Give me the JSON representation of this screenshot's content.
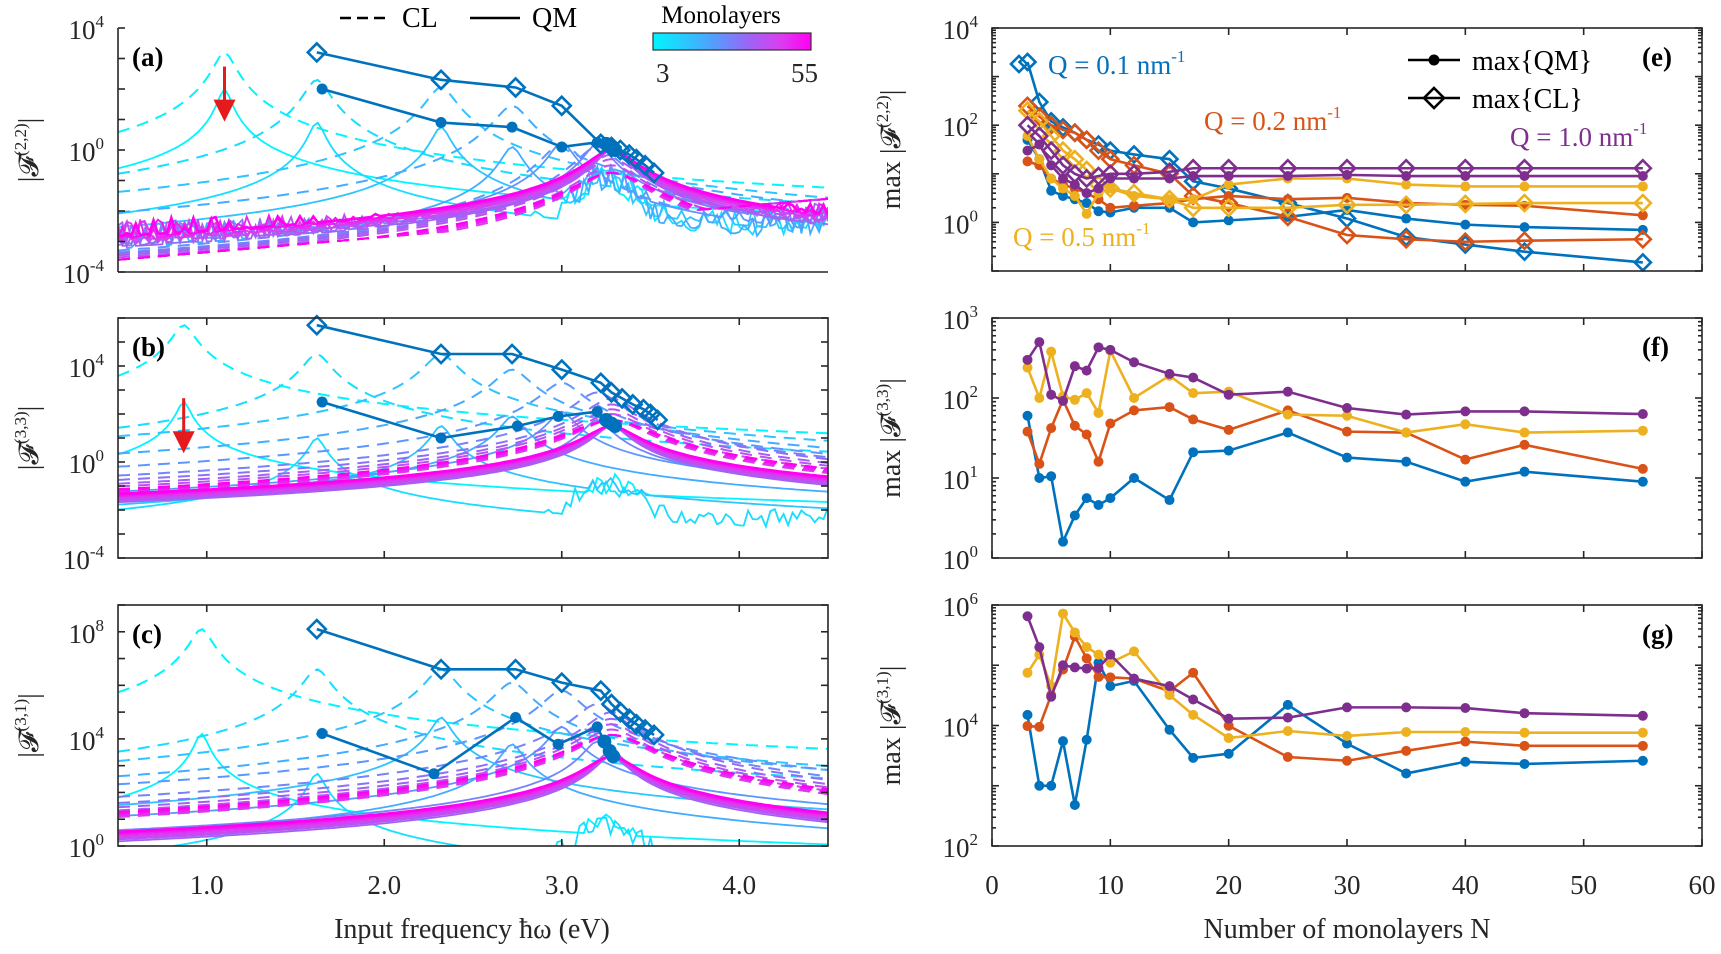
{
  "figure": {
    "legend_top": {
      "cl_label": "CL",
      "qm_label": "QM",
      "colorbar_title": "Monolayers",
      "colorbar_min": "3",
      "colorbar_max": "55",
      "colorbar_colors": [
        "#00f5ff",
        "#4aa6ff",
        "#9a66f5",
        "#d93ff0",
        "#ff00f0"
      ]
    },
    "left_xlabel": "Input frequency ħω (eV)",
    "right_xlabel": "Number of monolayers N"
  },
  "chart_data": [
    {
      "id": "a",
      "panel_label": "(a)",
      "type": "line",
      "ylabel": "|F(2,2)|",
      "ylabel_sup": "(2,2)",
      "xlim": [
        0.5,
        4.5
      ],
      "ylim_log10": [
        -4,
        4
      ],
      "yticks": [
        {
          "label": "10",
          "sup": "4",
          "v": 4
        },
        {
          "label": "10",
          "sup": "0",
          "v": 0
        },
        {
          "label": "10",
          "sup": "-4",
          "v": -4
        }
      ],
      "xticks": [
        1.0,
        2.0,
        3.0,
        4.0
      ],
      "annotation": {
        "type": "red-arrow",
        "x": 1.1,
        "y_log10": 0.8
      },
      "max_cl": {
        "x": [
          1.62,
          2.32,
          2.74,
          3.0,
          3.22,
          3.28,
          3.33,
          3.38,
          3.42,
          3.47,
          3.52
        ],
        "y_log10": [
          3.2,
          2.3,
          2.05,
          1.45,
          0.2,
          0.1,
          0.0,
          -0.15,
          -0.3,
          -0.5,
          -0.75
        ]
      },
      "max_qm": {
        "x": [
          1.65,
          2.32,
          2.72,
          3.0,
          3.2,
          3.25,
          3.28,
          3.3
        ],
        "y_log10": [
          2.0,
          0.9,
          0.75,
          0.1,
          0.25,
          0.2,
          0.1,
          0.0
        ]
      },
      "resonances": [
        1.1,
        1.62,
        2.32,
        2.72,
        3.0,
        3.2,
        3.28
      ]
    },
    {
      "id": "b",
      "panel_label": "(b)",
      "type": "line",
      "ylabel": "|F(3,3)|",
      "ylabel_sup": "(3,3)",
      "xlim": [
        0.5,
        4.5
      ],
      "ylim_log10": [
        -4,
        6
      ],
      "yticks": [
        {
          "label": "10",
          "sup": "4",
          "v": 4
        },
        {
          "label": "10",
          "sup": "0",
          "v": 0
        },
        {
          "label": "10",
          "sup": "-4",
          "v": -4
        }
      ],
      "xticks": [
        1.0,
        2.0,
        3.0,
        4.0
      ],
      "annotation": {
        "type": "red-arrow",
        "x": 0.87,
        "y_log10": 0.2
      },
      "max_cl": {
        "x": [
          1.62,
          2.32,
          2.72,
          3.0,
          3.22,
          3.28,
          3.34,
          3.4,
          3.46,
          3.5,
          3.54
        ],
        "y_log10": [
          5.7,
          4.5,
          4.5,
          3.85,
          3.3,
          2.9,
          2.65,
          2.4,
          2.2,
          2.0,
          1.75
        ]
      },
      "max_qm": {
        "x": [
          1.65,
          2.32,
          2.75,
          2.98,
          3.2,
          3.25,
          3.28,
          3.3
        ],
        "y_log10": [
          2.5,
          1.0,
          1.5,
          1.9,
          2.1,
          1.75,
          1.6,
          1.5
        ]
      },
      "resonances": [
        0.87,
        1.62,
        2.32,
        2.72,
        3.0,
        3.2,
        3.28
      ]
    },
    {
      "id": "c",
      "panel_label": "(c)",
      "type": "line",
      "ylabel": "|F(3,1)|",
      "ylabel_sup": "(3,1)",
      "xlim": [
        0.5,
        4.5
      ],
      "ylim_log10": [
        0,
        9
      ],
      "yticks": [
        {
          "label": "10",
          "sup": "8",
          "v": 8
        },
        {
          "label": "10",
          "sup": "4",
          "v": 4
        },
        {
          "label": "10",
          "sup": "0",
          "v": 0
        }
      ],
      "xticks": [
        1.0,
        2.0,
        3.0,
        4.0
      ],
      "max_cl": {
        "x": [
          1.62,
          2.32,
          2.74,
          3.0,
          3.22,
          3.28,
          3.33,
          3.38,
          3.42,
          3.47,
          3.52
        ],
        "y_log10": [
          8.1,
          6.6,
          6.6,
          6.1,
          5.8,
          5.3,
          5.0,
          4.75,
          4.55,
          4.35,
          4.15
        ]
      },
      "max_qm": {
        "x": [
          1.65,
          2.28,
          2.74,
          2.98,
          3.2,
          3.24,
          3.27,
          3.29
        ],
        "y_log10": [
          4.2,
          2.7,
          4.8,
          3.8,
          4.45,
          3.9,
          3.55,
          3.35
        ]
      },
      "resonances": [
        0.97,
        1.62,
        2.32,
        2.72,
        3.0,
        3.2,
        3.28
      ]
    },
    {
      "id": "e",
      "panel_label": "(e)",
      "type": "line",
      "ylabel": "max |F(2,2)|",
      "ylabel_sup": "(2,2)",
      "xlim": [
        0,
        60
      ],
      "ylim": [
        0.1,
        10000
      ],
      "yticks": [
        {
          "label": "10",
          "sup": "4",
          "v": 4
        },
        {
          "label": "10",
          "sup": "2",
          "v": 2
        },
        {
          "label": "10",
          "sup": "0",
          "v": 0
        }
      ],
      "xticks": [
        0,
        10,
        20,
        30,
        40,
        50,
        60
      ],
      "legend": {
        "qm": "max{QM}",
        "cl": "max{CL}",
        "placement": "top-right"
      },
      "N": [
        3,
        4,
        5,
        6,
        7,
        8,
        9,
        10,
        12,
        15,
        17,
        20,
        25,
        30,
        35,
        40,
        45,
        55
      ],
      "series": [
        {
          "name": "Q = 0.1 nm",
          "sup": "-1",
          "color": "#0072bd",
          "qm": [
            50,
            20,
            4.5,
            3.5,
            3,
            2.5,
            1.7,
            1.6,
            2,
            2,
            1.0,
            1.1,
            1.3,
            1.8,
            1.2,
            0.9,
            0.8,
            0.7
          ],
          "cl": [
            2000,
            300,
            120,
            90,
            70,
            50,
            40,
            30,
            25,
            20,
            7,
            5,
            2.5,
            1.2,
            0.5,
            0.35,
            0.25,
            0.15
          ]
        },
        {
          "name": "Q = 0.2 nm",
          "sup": "-1",
          "color": "#d95319",
          "qm": [
            18,
            15,
            8,
            6,
            5,
            4,
            3,
            2,
            2.2,
            2.5,
            3,
            3.5,
            3,
            3.2,
            2.5,
            2.3,
            2.2,
            1.4
          ],
          "cl": [
            250,
            150,
            100,
            80,
            70,
            50,
            30,
            20,
            15,
            10,
            3.5,
            2.5,
            1.3,
            0.55,
            0.45,
            0.4,
            0.42,
            0.45
          ]
        },
        {
          "name": "Q = 0.5 nm",
          "sup": "-1",
          "color": "#edb120",
          "qm": [
            60,
            20,
            8,
            5,
            3.5,
            1.5,
            4,
            5,
            3.5,
            3,
            3,
            6,
            8,
            8,
            6,
            5.5,
            5.5,
            5.5
          ],
          "cl": [
            200,
            120,
            60,
            30,
            20,
            12,
            6,
            5,
            4,
            3,
            2,
            2,
            2,
            2.3,
            2.3,
            2.4,
            2.5,
            2.5
          ]
        },
        {
          "name": "Q = 1.0 nm",
          "sup": "-1",
          "color": "#7e2f8e",
          "qm": [
            30,
            40,
            15,
            8,
            6,
            4,
            5,
            8,
            8,
            8,
            9,
            9,
            9,
            9.5,
            9,
            9,
            9,
            9
          ],
          "cl": [
            100,
            60,
            30,
            15,
            10,
            8,
            9,
            10,
            10,
            11,
            13,
            13,
            13,
            13,
            13,
            13,
            13,
            13
          ]
        }
      ],
      "q_label_positions": [
        "top-left",
        "center-right",
        "bottom-left",
        "right"
      ]
    },
    {
      "id": "f",
      "panel_label": "(f)",
      "type": "line",
      "ylabel": "max |F(3,3)|",
      "ylabel_sup": "(3,3)",
      "xlim": [
        0,
        60
      ],
      "ylim": [
        1,
        1000
      ],
      "yticks": [
        {
          "label": "10",
          "sup": "3",
          "v": 3
        },
        {
          "label": "10",
          "sup": "2",
          "v": 2
        },
        {
          "label": "10",
          "sup": "1",
          "v": 1
        },
        {
          "label": "10",
          "sup": "0",
          "v": 0
        }
      ],
      "xticks": [
        0,
        10,
        20,
        30,
        40,
        50,
        60
      ],
      "N": [
        3,
        4,
        5,
        6,
        7,
        8,
        9,
        10,
        12,
        15,
        17,
        20,
        25,
        30,
        35,
        40,
        45,
        55
      ],
      "series": [
        {
          "name": "Q = 0.1 nm-1",
          "color": "#0072bd",
          "qm": [
            60,
            10,
            10.5,
            1.6,
            3.4,
            5.6,
            4.6,
            5.6,
            10,
            5.3,
            21,
            22,
            37,
            18,
            16,
            9,
            12,
            9
          ]
        },
        {
          "name": "Q = 0.2 nm-1",
          "color": "#d95319",
          "qm": [
            38,
            15,
            42,
            95,
            45,
            35,
            16,
            48,
            70,
            77,
            54,
            40,
            70,
            38,
            37,
            17,
            26,
            13
          ]
        },
        {
          "name": "Q = 0.5 nm-1",
          "color": "#edb120",
          "qm": [
            240,
            100,
            380,
            105,
            95,
            115,
            65,
            390,
            100,
            190,
            115,
            120,
            62,
            60,
            37,
            47,
            37,
            39
          ]
        },
        {
          "name": "Q = 1.0 nm-1",
          "color": "#7e2f8e",
          "qm": [
            300,
            500,
            110,
            92,
            250,
            220,
            430,
            400,
            280,
            200,
            180,
            110,
            120,
            75,
            62,
            68,
            68,
            63
          ]
        }
      ]
    },
    {
      "id": "g",
      "panel_label": "(g)",
      "type": "line",
      "ylabel": "max |F(3,1)|",
      "ylabel_sup": "(3,1)",
      "xlim": [
        0,
        60
      ],
      "ylim": [
        100,
        1000000
      ],
      "yticks": [
        {
          "label": "10",
          "sup": "6",
          "v": 6
        },
        {
          "label": "10",
          "sup": "4",
          "v": 4
        },
        {
          "label": "10",
          "sup": "2",
          "v": 2
        }
      ],
      "xticks": [
        0,
        10,
        20,
        30,
        40,
        50,
        60
      ],
      "N": [
        3,
        4,
        5,
        6,
        7,
        8,
        9,
        10,
        12,
        15,
        17,
        20,
        25,
        30,
        35,
        40,
        45,
        55
      ],
      "series": [
        {
          "name": "Q = 0.1 nm-1",
          "color": "#0072bd",
          "qm": [
            15000,
            1000,
            1000,
            5500,
            480,
            5800,
            110000,
            45000,
            55000,
            8500,
            2900,
            3400,
            22000,
            5000,
            1600,
            2500,
            2300,
            2600
          ]
        },
        {
          "name": "Q = 0.2 nm-1",
          "color": "#d95319",
          "qm": [
            9800,
            9500,
            32000,
            85000,
            300000,
            130000,
            64000,
            63000,
            60000,
            37000,
            75000,
            9900,
            3000,
            2600,
            3800,
            5400,
            4600,
            4600
          ]
        },
        {
          "name": "Q = 0.5 nm-1",
          "color": "#edb120",
          "qm": [
            75000,
            150000,
            45000,
            720000,
            350000,
            200000,
            150000,
            110000,
            170000,
            32000,
            15000,
            6200,
            8100,
            6700,
            7800,
            7800,
            7600,
            7600
          ]
        },
        {
          "name": "Q = 1.0 nm-1",
          "color": "#7e2f8e",
          "qm": [
            650000,
            200000,
            30000,
            100000,
            92000,
            88000,
            90000,
            150000,
            60000,
            45000,
            27000,
            13000,
            13500,
            20000,
            20000,
            19500,
            16000,
            14500
          ]
        }
      ]
    }
  ]
}
